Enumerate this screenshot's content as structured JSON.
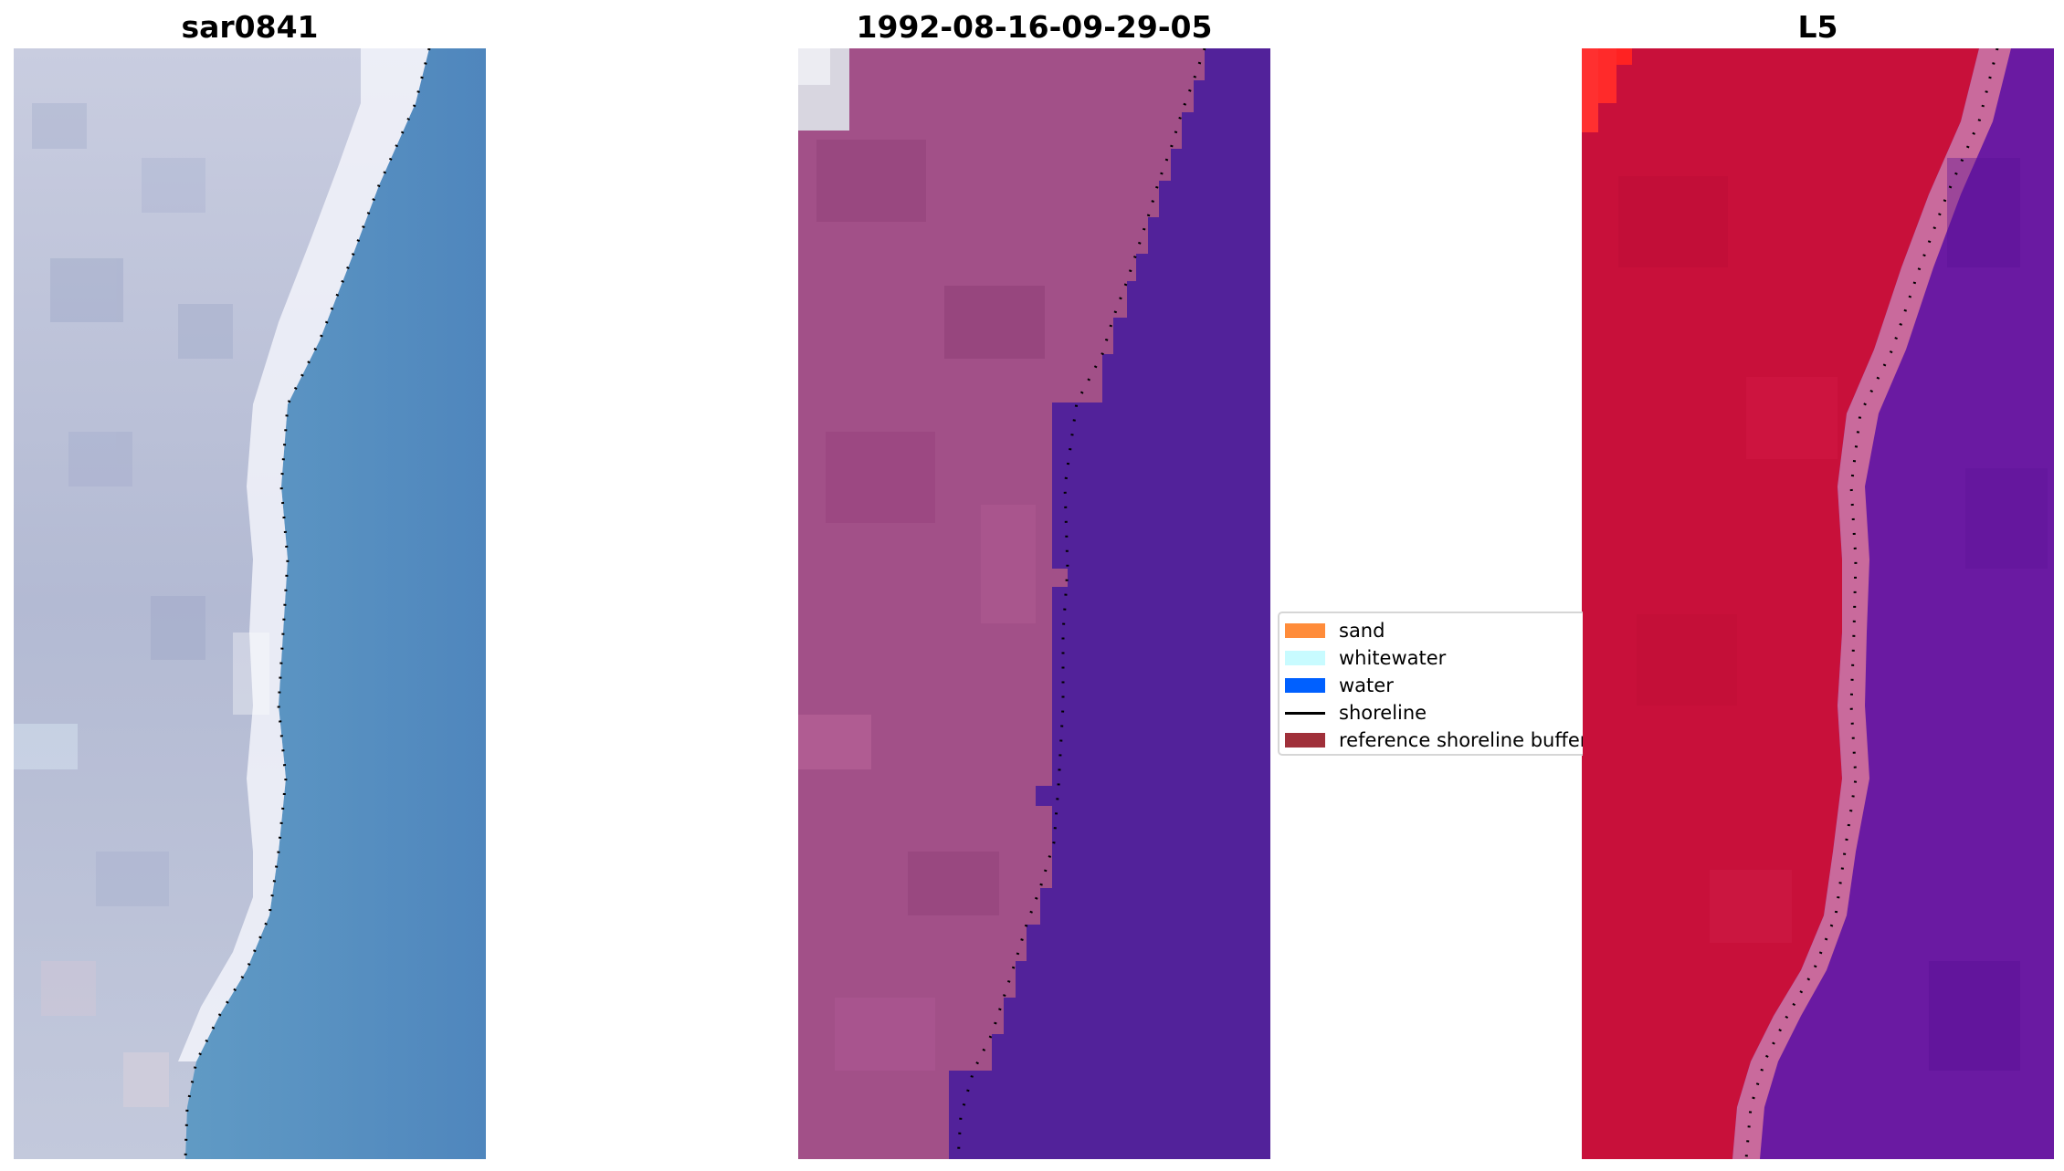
{
  "panels": [
    {
      "title": "sar0841",
      "kind": "rgb"
    },
    {
      "title": "1992-08-16-09-29-05",
      "kind": "classified"
    },
    {
      "title": "L5",
      "kind": "index"
    }
  ],
  "legend": {
    "items": [
      {
        "label": "sand",
        "color": "#ff8c3a",
        "type": "patch"
      },
      {
        "label": "whitewater",
        "color": "#c8fbff",
        "type": "patch"
      },
      {
        "label": "water",
        "color": "#0060ff",
        "type": "patch"
      },
      {
        "label": "shoreline",
        "color": "#000000",
        "type": "line"
      },
      {
        "label": "reference shoreline buffer",
        "color": "#a0303a",
        "type": "patch"
      }
    ]
  },
  "colors": {
    "rgb_land": "#b8bfd6",
    "rgb_water": "#5a8fc0",
    "classified_land": "#a25088",
    "classified_water": "#52229a",
    "index_land": "#c8103a",
    "index_water": "#6a1aa2"
  }
}
